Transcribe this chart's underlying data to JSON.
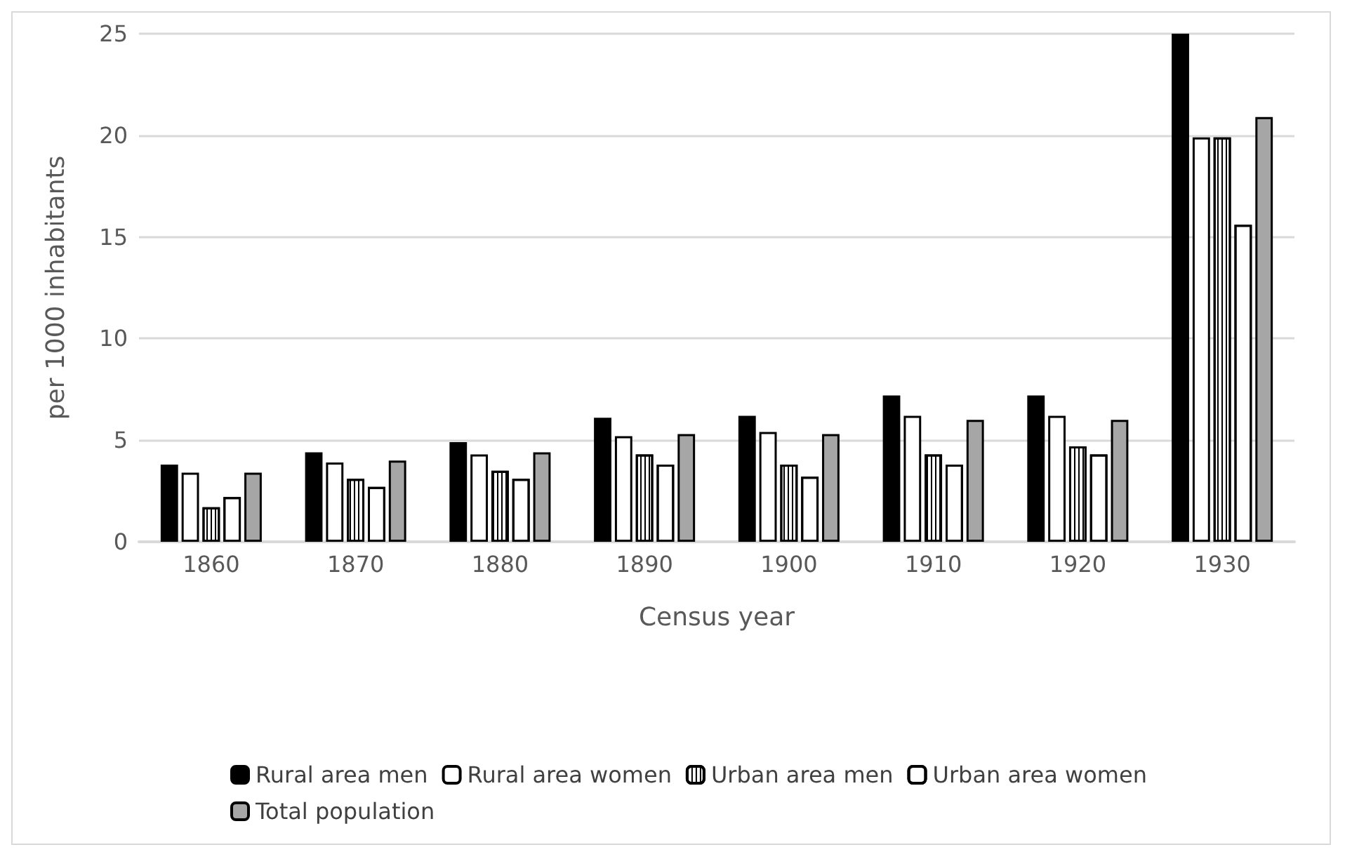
{
  "chart_data": {
    "type": "bar",
    "xlabel": "Census year",
    "ylabel": "per 1000 inhabitants",
    "categories": [
      "1860",
      "1870",
      "1880",
      "1890",
      "1900",
      "1910",
      "1920",
      "1930"
    ],
    "series": [
      {
        "name": "Rural area men",
        "color": "#000000",
        "values": [
          3.8,
          4.4,
          4.9,
          6.1,
          6.2,
          7.2,
          7.2,
          25
        ]
      },
      {
        "name": "Rural area women",
        "color": "#ffffff",
        "values": [
          3.4,
          3.9,
          4.3,
          5.2,
          5.4,
          6.2,
          6.2,
          19.9
        ]
      },
      {
        "name": "Urban area men",
        "color": "#ffffff",
        "values": [
          1.7,
          3.1,
          3.5,
          4.3,
          3.8,
          4.3,
          4.7,
          19.9
        ]
      },
      {
        "name": "Urban area women",
        "color": "#ffffff",
        "values": [
          2.2,
          2.7,
          3.1,
          3.8,
          3.2,
          3.8,
          4.3,
          15.6
        ]
      },
      {
        "name": "Total population",
        "color": "#a6a6a6",
        "values": [
          3.4,
          4.0,
          4.4,
          5.3,
          5.3,
          6.0,
          6.0,
          20.9
        ]
      }
    ],
    "ylim": [
      0,
      25
    ],
    "yticks": [
      0,
      5,
      10,
      15,
      20,
      25
    ],
    "grid": "y",
    "legend": "bottom"
  }
}
